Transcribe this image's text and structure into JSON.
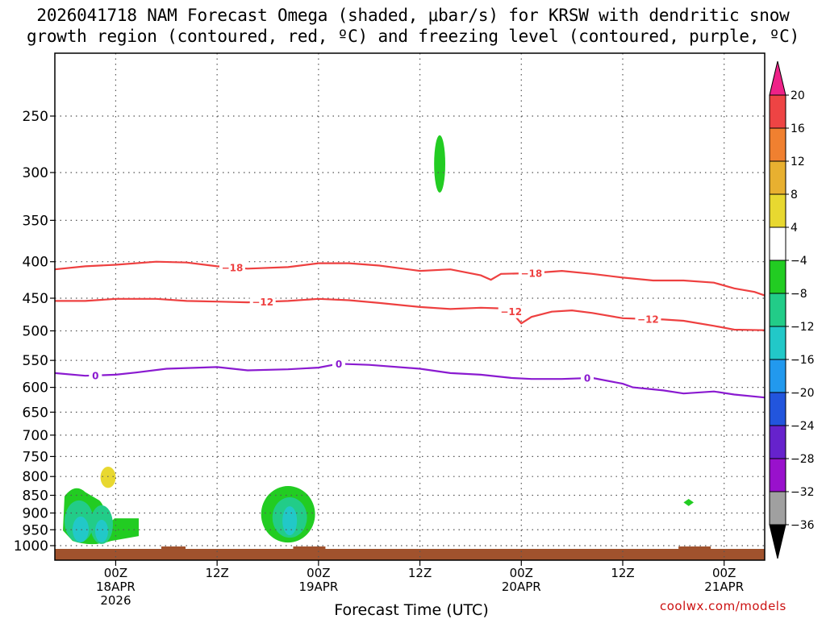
{
  "title_line1": "2026041718 NAM Forecast Omega (shaded, μbar/s) for KRSW with dendritic snow",
  "title_line2": "growth region (contoured, red, ºC) and freezing level (contoured, purple, ºC)",
  "xlabel": "Forecast Time (UTC)",
  "credit": "coolwx.com/models",
  "chart_data": {
    "type": "time-height cross section",
    "y_axis": {
      "scale": "log-pressure",
      "reversed": true,
      "ticks": [
        250,
        300,
        350,
        400,
        450,
        500,
        550,
        600,
        650,
        700,
        750,
        800,
        850,
        900,
        950,
        1000
      ],
      "range": [
        1000,
        200
      ]
    },
    "x_axis": {
      "range_hours": [
        -3,
        67
      ],
      "ticks": [
        {
          "hour": 3,
          "label": "00Z",
          "sub": [
            "18APR",
            "2026"
          ]
        },
        {
          "hour": 13,
          "label": "12Z",
          "sub": []
        },
        {
          "hour": 23,
          "label": "00Z",
          "sub": [
            "19APR"
          ]
        },
        {
          "hour": 33,
          "label": "12Z",
          "sub": []
        },
        {
          "hour": 43,
          "label": "00Z",
          "sub": [
            "20APR"
          ]
        },
        {
          "hour": 53,
          "label": "12Z",
          "sub": []
        },
        {
          "hour": 63,
          "label": "00Z",
          "sub": [
            "21APR"
          ]
        }
      ]
    },
    "grid": true,
    "colorbar": {
      "labels": [
        "20",
        "16",
        "12",
        "8",
        "4",
        "−4",
        "−8",
        "−12",
        "−16",
        "−20",
        "−24",
        "−28",
        "−32",
        "−36"
      ],
      "colors": [
        "#ee2288",
        "#ee4444",
        "#f08030",
        "#e8b030",
        "#e8d830",
        "#ffffff",
        "#22cc22",
        "#22cc88",
        "#22c8c8",
        "#2299ee",
        "#2255dd",
        "#6622cc",
        "#9911cc",
        "#a0a0a0",
        "#000000"
      ]
    },
    "contours": [
      {
        "name": "-18",
        "color": "#ee4040",
        "label_hours": [
          14.5,
          44
        ],
        "points": [
          [
            -3,
            410
          ],
          [
            0,
            406
          ],
          [
            3,
            404
          ],
          [
            7,
            400
          ],
          [
            10,
            401
          ],
          [
            13,
            406
          ],
          [
            16,
            409
          ],
          [
            20,
            407
          ],
          [
            23,
            402
          ],
          [
            26,
            402
          ],
          [
            29,
            405
          ],
          [
            33,
            412
          ],
          [
            36,
            410
          ],
          [
            39,
            418
          ],
          [
            40,
            424
          ],
          [
            41,
            416
          ],
          [
            44,
            415
          ],
          [
            47,
            412
          ],
          [
            50,
            416
          ],
          [
            53,
            421
          ],
          [
            56,
            425
          ],
          [
            59,
            425
          ],
          [
            62,
            428
          ],
          [
            64,
            436
          ],
          [
            66,
            441
          ],
          [
            67,
            446
          ]
        ]
      },
      {
        "name": "-12",
        "color": "#ee4040",
        "label_hours": [
          17.5,
          42,
          55.5
        ],
        "points": [
          [
            -3,
            454
          ],
          [
            0,
            454
          ],
          [
            3,
            451
          ],
          [
            7,
            451
          ],
          [
            10,
            454
          ],
          [
            13,
            455
          ],
          [
            16,
            456
          ],
          [
            20,
            454
          ],
          [
            23,
            451
          ],
          [
            26,
            453
          ],
          [
            29,
            457
          ],
          [
            33,
            463
          ],
          [
            36,
            466
          ],
          [
            39,
            464
          ],
          [
            41,
            465
          ],
          [
            42,
            470
          ],
          [
            43,
            488
          ],
          [
            44,
            478
          ],
          [
            46,
            470
          ],
          [
            48,
            468
          ],
          [
            50,
            472
          ],
          [
            53,
            480
          ],
          [
            55,
            481
          ],
          [
            57,
            482
          ],
          [
            59,
            484
          ],
          [
            62,
            492
          ],
          [
            64,
            498
          ],
          [
            67,
            499
          ]
        ]
      },
      {
        "name": "0",
        "color": "#8a1ad0",
        "label_hours": [
          1,
          25,
          49.5
        ],
        "points": [
          [
            -3,
            573
          ],
          [
            0,
            578
          ],
          [
            3,
            576
          ],
          [
            5,
            572
          ],
          [
            8,
            565
          ],
          [
            13,
            562
          ],
          [
            16,
            568
          ],
          [
            20,
            566
          ],
          [
            23,
            563
          ],
          [
            25,
            556
          ],
          [
            28,
            558
          ],
          [
            33,
            565
          ],
          [
            36,
            573
          ],
          [
            39,
            576
          ],
          [
            42,
            582
          ],
          [
            44,
            584
          ],
          [
            47,
            584
          ],
          [
            50,
            582
          ],
          [
            53,
            593
          ],
          [
            54,
            600
          ],
          [
            57,
            606
          ],
          [
            59,
            612
          ],
          [
            62,
            608
          ],
          [
            64,
            614
          ],
          [
            67,
            620
          ]
        ]
      }
    ],
    "omega_cells": [
      {
        "hour_range": [
          34.4,
          35.5
        ],
        "pressure_range": [
          266,
          320
        ],
        "value": "-4 to -8"
      },
      {
        "hour_range": [
          1.5,
          3
        ],
        "pressure_range": [
          775,
          830
        ],
        "value": "4 to 8"
      },
      {
        "hour_range": [
          -3,
          7.5
        ],
        "pressure_range": [
          820,
          990
        ],
        "value": "-4 to -12"
      },
      {
        "hour_range": [
          17.5,
          22.5
        ],
        "pressure_range": [
          825,
          990
        ],
        "value": "-4 to -12"
      },
      {
        "hour_range": [
          59,
          60
        ],
        "pressure_range": [
          860,
          880
        ],
        "value": "-4 to -8"
      }
    ],
    "terrain": {
      "color": "#a0522d",
      "pressure_bottom": 1000
    }
  }
}
